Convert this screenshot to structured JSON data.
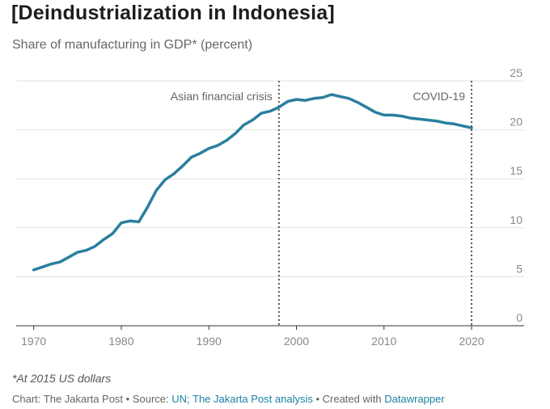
{
  "title": "[Deindustrialization in Indonesia]",
  "subtitle": "Share of manufacturing in GDP* (percent)",
  "note": "*At 2015 US dollars",
  "footer": {
    "prefix": "Chart: The Jakarta Post • Source: ",
    "source_link": "UN; The Jakarta Post analysis",
    "middle": " • Created with ",
    "tool_link": "Datawrapper"
  },
  "colors": {
    "line": "#2a7f9e",
    "grid": "#e3e3e3",
    "annotation": "#555555"
  },
  "chart_data": {
    "type": "line",
    "title": "[Deindustrialization in Indonesia]",
    "subtitle": "Share of manufacturing in GDP* (percent)",
    "xlabel": "",
    "ylabel": "",
    "xlim": [
      1968,
      2026
    ],
    "ylim": [
      0,
      25
    ],
    "y_axis_position": "right",
    "grid": true,
    "xticks": [
      1970,
      1980,
      1990,
      2000,
      2010,
      2020
    ],
    "yticks": [
      0,
      5,
      10,
      15,
      20,
      25
    ],
    "x": [
      1970,
      1971,
      1972,
      1973,
      1974,
      1975,
      1976,
      1977,
      1978,
      1979,
      1980,
      1981,
      1982,
      1983,
      1984,
      1985,
      1986,
      1987,
      1988,
      1989,
      1990,
      1991,
      1992,
      1993,
      1994,
      1995,
      1996,
      1997,
      1998,
      1999,
      2000,
      2001,
      2002,
      2003,
      2004,
      2005,
      2006,
      2007,
      2008,
      2009,
      2010,
      2011,
      2012,
      2013,
      2014,
      2015,
      2016,
      2017,
      2018,
      2019,
      2020
    ],
    "series": [
      {
        "values": [
          5.7,
          6.0,
          6.3,
          6.5,
          7.0,
          7.5,
          7.7,
          8.1,
          8.8,
          9.4,
          10.5,
          10.7,
          10.6,
          12.1,
          13.8,
          14.9,
          15.5,
          16.3,
          17.2,
          17.6,
          18.1,
          18.4,
          18.9,
          19.6,
          20.5,
          21.0,
          21.7,
          21.9,
          22.3,
          22.9,
          23.1,
          23.0,
          23.2,
          23.3,
          23.6,
          23.4,
          23.2,
          22.8,
          22.3,
          21.8,
          21.5,
          21.5,
          21.4,
          21.2,
          21.1,
          21.0,
          20.9,
          20.7,
          20.6,
          20.4,
          20.2
        ]
      }
    ],
    "annotations": [
      {
        "x": 1998,
        "label": "Asian financial crisis",
        "style": "dotted"
      },
      {
        "x": 2020,
        "label": "COVID-19",
        "style": "dotted"
      }
    ]
  }
}
